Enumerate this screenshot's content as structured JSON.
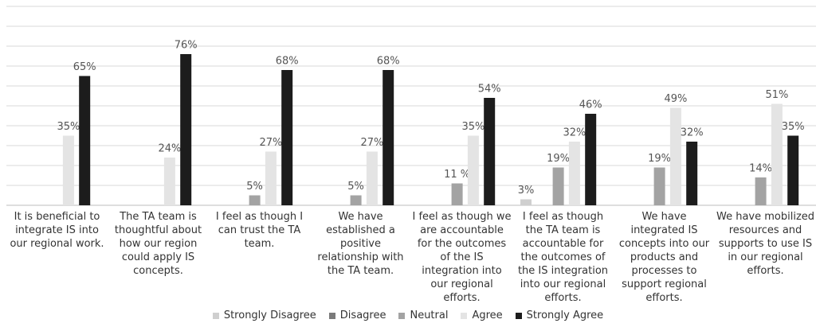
{
  "chart_data": {
    "type": "bar",
    "categories": [
      "It is beneficial to integrate IS into our regional work.",
      "The TA team is thoughtful about how our region could apply IS concepts.",
      "I feel as though I can trust the TA team.",
      "We have established a positive relationship with the TA team.",
      "I feel as though we are accountable for the outcomes of the IS integration into our regional efforts.",
      "I feel as though the TA team is accountable for the outcomes of the IS integration into our regional efforts.",
      "We have integrated IS concepts into our products and processes to support regional efforts.",
      "We have mobilized resources and supports to use IS in our regional efforts."
    ],
    "series": [
      {
        "name": "Strongly Disagree",
        "color": "#cfcfcf",
        "values": [
          null,
          null,
          null,
          null,
          null,
          3,
          null,
          null
        ],
        "value_labels": [
          null,
          null,
          null,
          null,
          null,
          "3%",
          null,
          null
        ]
      },
      {
        "name": "Disagree",
        "color": "#7a7a7a",
        "values": [
          null,
          null,
          null,
          null,
          null,
          null,
          null,
          null
        ],
        "value_labels": [
          null,
          null,
          null,
          null,
          null,
          null,
          null,
          null
        ]
      },
      {
        "name": "Neutral",
        "color": "#a3a3a3",
        "values": [
          null,
          null,
          5,
          5,
          11,
          19,
          19,
          14
        ],
        "value_labels": [
          null,
          null,
          "5%",
          "5%",
          "11 %",
          "19%",
          "19%",
          "14%"
        ]
      },
      {
        "name": "Agree",
        "color": "#e4e4e4",
        "values": [
          35,
          24,
          27,
          27,
          35,
          32,
          49,
          51
        ],
        "value_labels": [
          "35%",
          "24%",
          "27%",
          "27%",
          "35%",
          "32%",
          "49%",
          "51%"
        ]
      },
      {
        "name": "Strongly Agree",
        "color": "#1c1c1c",
        "values": [
          65,
          76,
          68,
          68,
          54,
          46,
          32,
          35
        ],
        "value_labels": [
          "65%",
          "76%",
          "68%",
          "68%",
          "54%",
          "46%",
          "32%",
          "35%"
        ]
      }
    ],
    "ylim": [
      0,
      100
    ],
    "yticks": [
      0,
      10,
      20,
      30,
      40,
      50,
      60,
      70,
      80,
      90,
      100
    ],
    "grid": true
  }
}
